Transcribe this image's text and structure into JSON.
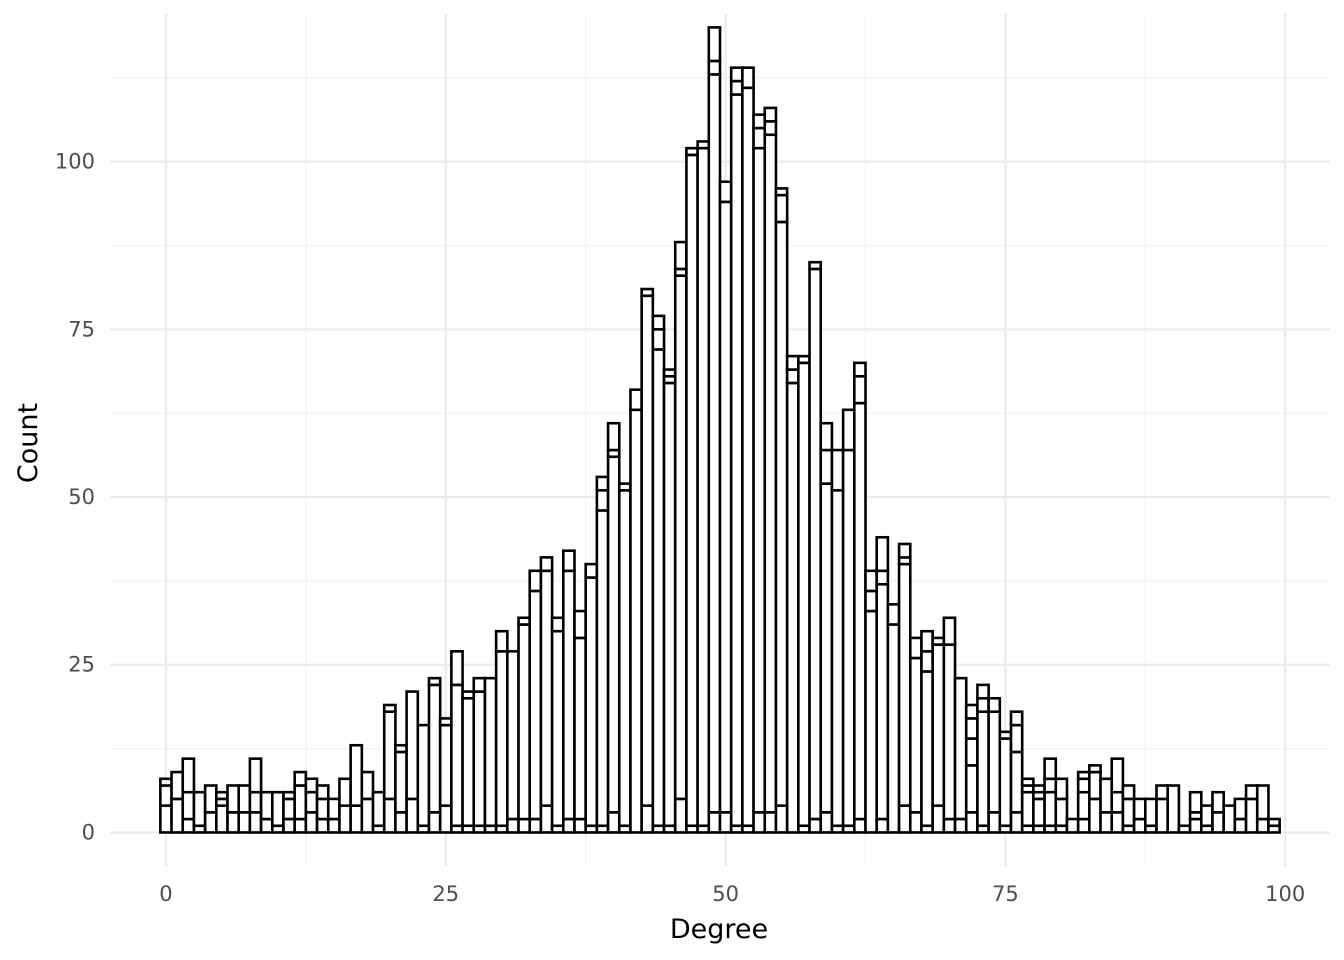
{
  "chart_data": {
    "type": "bar",
    "title": "",
    "xlabel": "Degree",
    "ylabel": "Count",
    "xlim": [
      -5,
      104
    ],
    "ylim": [
      -5,
      122
    ],
    "x_ticks": [
      0,
      25,
      50,
      75,
      100
    ],
    "y_ticks": [
      0,
      25,
      50,
      75,
      100
    ],
    "x_tick_labels": [
      "0",
      "25",
      "50",
      "75",
      "100"
    ],
    "y_tick_labels": [
      "0",
      "25",
      "50",
      "75",
      "100"
    ],
    "grid": true,
    "legend": "none",
    "bar_fill": "#ffffff",
    "bar_stroke": "#000000",
    "bar_width": 1,
    "x": [
      0,
      1,
      2,
      3,
      4,
      5,
      6,
      7,
      8,
      9,
      10,
      11,
      12,
      13,
      14,
      15,
      16,
      17,
      18,
      19,
      20,
      21,
      22,
      23,
      24,
      25,
      26,
      27,
      28,
      29,
      30,
      31,
      32,
      33,
      34,
      35,
      36,
      37,
      38,
      39,
      40,
      41,
      42,
      43,
      44,
      45,
      46,
      47,
      48,
      49,
      50,
      51,
      52,
      53,
      54,
      55,
      56,
      57,
      58,
      59,
      60,
      61,
      62,
      63,
      64,
      65,
      66,
      67,
      68,
      69,
      70,
      71,
      72,
      73,
      74,
      75,
      76,
      77,
      78,
      79,
      80,
      81,
      82,
      83,
      84,
      85,
      86,
      87,
      88,
      89,
      90,
      91,
      92,
      93,
      94,
      95,
      96,
      97,
      98,
      99
    ],
    "stacks": [
      [
        4,
        3,
        1
      ],
      [
        5,
        4
      ],
      [
        2,
        4,
        5
      ],
      [
        1,
        5
      ],
      [
        3,
        4
      ],
      [
        4,
        1,
        1
      ],
      [
        3,
        4
      ],
      [
        3,
        4
      ],
      [
        3,
        3,
        5
      ],
      [
        2,
        4
      ],
      [
        1,
        5
      ],
      [
        2,
        3,
        1
      ],
      [
        2,
        5,
        2
      ],
      [
        3,
        3,
        2
      ],
      [
        2,
        3,
        2
      ],
      [
        2,
        3
      ],
      [
        4,
        4
      ],
      [
        4,
        9
      ],
      [
        5,
        4
      ],
      [
        1,
        5
      ],
      [
        5,
        13,
        1
      ],
      [
        3,
        9,
        1
      ],
      [
        5,
        16
      ],
      [
        1,
        15
      ],
      [
        3,
        19,
        1
      ],
      [
        4,
        12,
        1
      ],
      [
        1,
        21,
        5
      ],
      [
        1,
        19,
        1
      ],
      [
        1,
        20,
        2
      ],
      [
        1,
        22
      ],
      [
        1,
        26,
        3
      ],
      [
        2,
        25
      ],
      [
        2,
        29,
        1
      ],
      [
        2,
        34,
        3
      ],
      [
        4,
        35,
        2
      ],
      [
        1,
        29,
        2
      ],
      [
        2,
        37,
        3
      ],
      [
        2,
        27,
        4
      ],
      [
        1,
        37,
        2
      ],
      [
        1,
        47,
        3,
        2
      ],
      [
        3,
        53,
        1,
        4
      ],
      [
        1,
        50,
        1
      ],
      [
        63,
        3
      ],
      [
        4,
        76,
        1
      ],
      [
        1,
        71,
        3,
        2
      ],
      [
        1,
        66,
        1,
        1
      ],
      [
        5,
        78,
        1,
        4
      ],
      [
        1,
        100,
        1
      ],
      [
        1,
        101,
        1
      ],
      [
        3,
        110,
        2,
        5
      ],
      [
        3,
        91,
        3
      ],
      [
        1,
        109,
        2,
        2
      ],
      [
        1,
        110,
        3
      ],
      [
        3,
        99,
        3,
        2
      ],
      [
        3,
        101,
        2,
        2
      ],
      [
        4,
        87,
        4,
        1
      ],
      [
        67,
        2,
        2
      ],
      [
        1,
        69,
        1
      ],
      [
        2,
        82,
        1
      ],
      [
        3,
        49,
        5,
        4
      ],
      [
        1,
        50,
        6
      ],
      [
        1,
        56,
        6
      ],
      [
        2,
        62,
        4,
        2
      ],
      [
        33,
        3,
        3
      ],
      [
        2,
        35,
        2,
        5
      ],
      [
        31,
        3
      ],
      [
        4,
        36,
        1,
        2
      ],
      [
        3,
        23,
        3
      ],
      [
        1,
        23,
        3,
        3
      ],
      [
        4,
        24,
        1
      ],
      [
        2,
        26,
        4
      ],
      [
        2,
        21
      ],
      [
        3,
        7,
        4,
        3,
        2
      ],
      [
        1,
        17,
        2,
        2
      ],
      [
        3,
        15,
        2
      ],
      [
        1,
        13,
        1
      ],
      [
        3,
        9,
        4,
        2
      ],
      [
        1,
        5,
        1,
        1
      ],
      [
        1,
        4,
        1,
        1
      ],
      [
        1,
        5,
        2,
        3
      ],
      [
        1,
        4,
        3
      ],
      [
        2
      ],
      [
        2,
        4,
        2,
        1
      ],
      [
        5,
        4,
        1
      ],
      [
        3,
        5
      ],
      [
        3,
        3,
        5
      ],
      [
        1,
        4,
        2
      ],
      [
        2,
        3
      ],
      [
        1,
        4
      ],
      [
        5,
        2
      ],
      [
        7
      ],
      [
        1
      ],
      [
        2,
        1,
        3
      ],
      [
        1,
        3
      ],
      [
        3,
        3
      ],
      [
        4
      ],
      [
        2,
        3
      ],
      [
        5,
        2
      ],
      [
        2,
        5
      ],
      [
        1,
        1
      ]
    ]
  }
}
